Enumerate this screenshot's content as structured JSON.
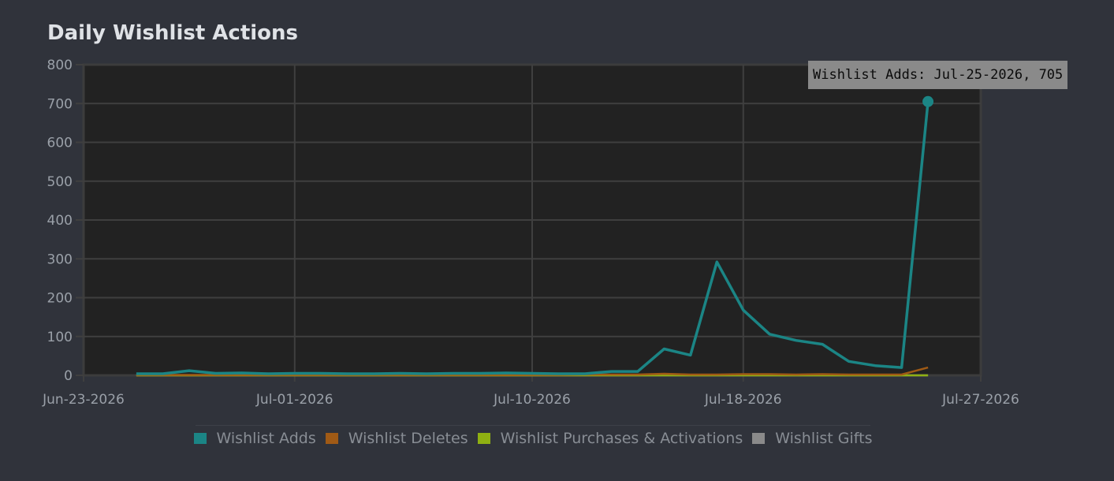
{
  "chart_data": {
    "type": "line",
    "title": "Daily Wishlist Actions",
    "xlabel": "",
    "ylabel": "",
    "xlim": [
      "2026-06-23",
      "2026-07-27"
    ],
    "ylim": [
      0,
      800
    ],
    "x_tick_labels": [
      {
        "date": "2026-06-23",
        "label": "Jun-23-2026"
      },
      {
        "date": "2026-07-01",
        "label": "Jul-01-2026"
      },
      {
        "date": "2026-07-10",
        "label": "Jul-10-2026"
      },
      {
        "date": "2026-07-18",
        "label": "Jul-18-2026"
      },
      {
        "date": "2026-07-27",
        "label": "Jul-27-2026"
      }
    ],
    "y_ticks": [
      0,
      100,
      200,
      300,
      400,
      500,
      600,
      700,
      800
    ],
    "grid": true,
    "legend_position": "bottom",
    "x": [
      "2026-06-25",
      "2026-06-26",
      "2026-06-27",
      "2026-06-28",
      "2026-06-29",
      "2026-06-30",
      "2026-07-01",
      "2026-07-02",
      "2026-07-03",
      "2026-07-04",
      "2026-07-05",
      "2026-07-06",
      "2026-07-07",
      "2026-07-08",
      "2026-07-09",
      "2026-07-10",
      "2026-07-11",
      "2026-07-12",
      "2026-07-13",
      "2026-07-14",
      "2026-07-15",
      "2026-07-16",
      "2026-07-17",
      "2026-07-18",
      "2026-07-19",
      "2026-07-20",
      "2026-07-21",
      "2026-07-22",
      "2026-07-23",
      "2026-07-24",
      "2026-07-25"
    ],
    "series": [
      {
        "name": "Wishlist Adds",
        "color": "#1b8585",
        "values": [
          4,
          4,
          12,
          5,
          6,
          4,
          5,
          5,
          4,
          4,
          5,
          4,
          5,
          5,
          6,
          5,
          4,
          4,
          10,
          10,
          68,
          52,
          292,
          168,
          106,
          90,
          80,
          36,
          25,
          20,
          705
        ]
      },
      {
        "name": "Wishlist Deletes",
        "color": "#a05a15",
        "values": [
          1,
          1,
          1,
          1,
          1,
          1,
          1,
          1,
          1,
          1,
          1,
          1,
          1,
          1,
          1,
          1,
          1,
          2,
          2,
          2,
          4,
          2,
          2,
          3,
          3,
          2,
          3,
          2,
          2,
          2,
          20
        ]
      },
      {
        "name": "Wishlist Purchases & Activations",
        "color": "#8fb012",
        "values": [
          0,
          0,
          0,
          0,
          0,
          0,
          0,
          0,
          0,
          0,
          0,
          0,
          0,
          0,
          0,
          0,
          0,
          0,
          0,
          0,
          0,
          0,
          0,
          0,
          0,
          0,
          0,
          0,
          0,
          0,
          0
        ]
      },
      {
        "name": "Wishlist Gifts",
        "color": "#8a8a8a",
        "values": [
          0,
          0,
          0,
          0,
          0,
          0,
          0,
          0,
          0,
          0,
          0,
          0,
          0,
          0,
          0,
          0,
          0,
          0,
          0,
          0,
          0,
          0,
          0,
          0,
          0,
          0,
          0,
          0,
          0,
          0,
          0
        ]
      }
    ],
    "tooltip": {
      "text": "Wishlist Adds: Jul-25-2026, 705",
      "series": "Wishlist Adds",
      "date": "2026-07-25",
      "value": 705
    }
  },
  "colors": {
    "background": "#30333b",
    "plot_background": "#222222",
    "grid": "#3f3f3f"
  }
}
